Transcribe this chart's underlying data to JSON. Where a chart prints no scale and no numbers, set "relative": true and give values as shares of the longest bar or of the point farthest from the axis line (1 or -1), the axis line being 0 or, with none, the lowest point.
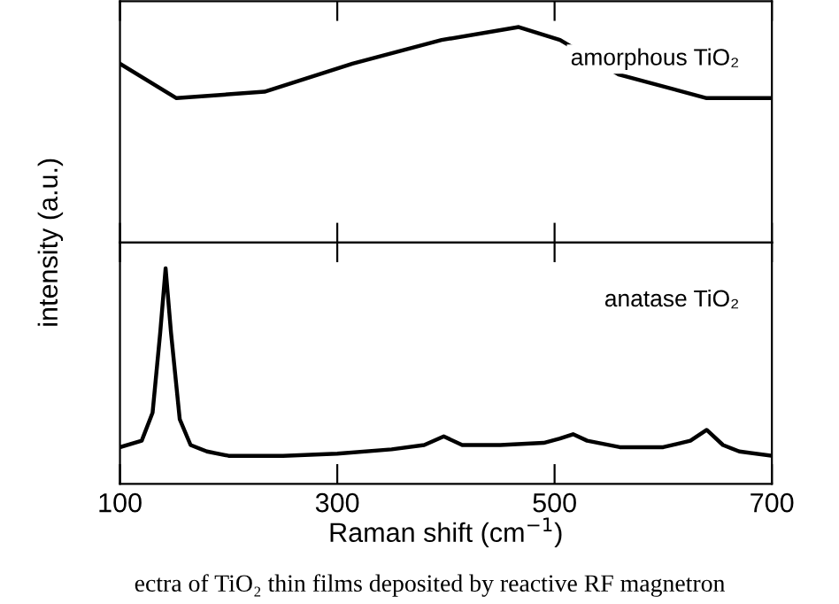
{
  "chart_data": [
    {
      "type": "line",
      "relative": true,
      "xlim": [
        100,
        700
      ],
      "xticks": [
        100,
        300,
        500,
        700
      ],
      "tick_labels": false,
      "annotations": [
        "amorphous TiO₂"
      ],
      "series": [
        {
          "color": "#000000",
          "x": [
            100,
            152,
            233,
            314,
            396,
            467,
            505,
            559,
            640,
            700
          ],
          "values": [
            0.83,
            0.67,
            0.7,
            0.83,
            0.94,
            1,
            0.94,
            0.78,
            0.67,
            0.67
          ]
        }
      ]
    },
    {
      "type": "line",
      "relative": true,
      "xlim": [
        100,
        700
      ],
      "xticks": [
        100,
        300,
        500,
        700
      ],
      "tick_labels": "x",
      "xlabel": "Raman shift (cm$^{−1}$)",
      "ylabel": "intensity (a.u.)",
      "annotations": [
        "anatase TiO₂",
        "ectra of TiO₂ thin films deposited by reactive RF magnetron"
      ],
      "series": [
        {
          "color": "#000000",
          "x": [
            100,
            120,
            130,
            137,
            142,
            147,
            155,
            165,
            180,
            200,
            250,
            300,
            350,
            380,
            398,
            415,
            450,
            490,
            505,
            517,
            530,
            560,
            600,
            625,
            640,
            655,
            670,
            700
          ],
          "values": [
            0.17,
            0.2,
            0.33,
            0.7,
            1,
            0.7,
            0.3,
            0.18,
            0.15,
            0.13,
            0.13,
            0.14,
            0.16,
            0.18,
            0.22,
            0.18,
            0.18,
            0.19,
            0.21,
            0.23,
            0.2,
            0.17,
            0.17,
            0.2,
            0.25,
            0.18,
            0.15,
            0.13
          ]
        }
      ]
    }
  ]
}
